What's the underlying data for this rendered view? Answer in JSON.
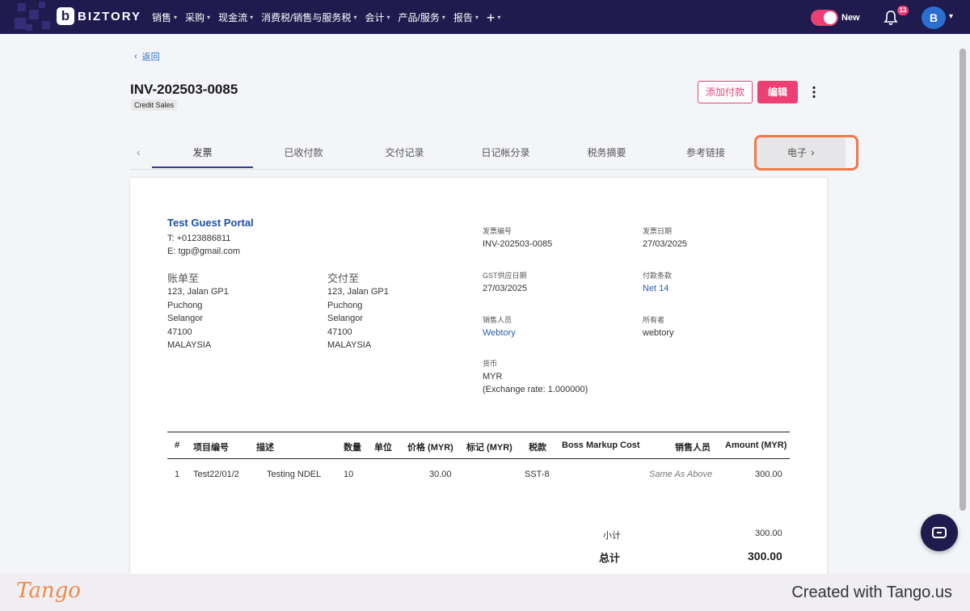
{
  "nav": {
    "brand": "BIZTORY",
    "menu": [
      "销售",
      "采购",
      "现金流",
      "消费税/销售与服务税",
      "会计",
      "产品/服务",
      "报告"
    ],
    "plus": "+",
    "toggle_label": "New",
    "notifications": "13",
    "avatar": "B"
  },
  "header": {
    "back": "返回",
    "invoice_no": "INV-202503-0085",
    "tag": "Credit Sales",
    "add_payment": "添加付款",
    "edit": "编辑"
  },
  "tabs": [
    "发票",
    "已收付款",
    "交付记录",
    "日记帐分录",
    "税务摘要",
    "参考链接",
    "电子"
  ],
  "invoice": {
    "company": "Test Guest Portal",
    "phone": "T: +0123886811",
    "email": "E: tgp@gmail.com",
    "bill_to": {
      "label": "账单至",
      "lines": [
        "123, Jalan GP1",
        "Puchong",
        "Selangor",
        "47100",
        "MALAYSIA"
      ]
    },
    "ship_to": {
      "label": "交付至",
      "lines": [
        "123, Jalan GP1",
        "Puchong",
        "Selangor",
        "47100",
        "MALAYSIA"
      ]
    },
    "meta": {
      "invoice_no_label": "发票编号",
      "invoice_no": "INV-202503-0085",
      "invoice_date_label": "发票日期",
      "invoice_date": "27/03/2025",
      "gst_date_label": "GST供应日期",
      "gst_date": "27/03/2025",
      "terms_label": "付款条款",
      "terms": "Net 14",
      "sales_person_label": "销售人员",
      "sales_person": "Webtory",
      "owner_label": "所有者",
      "owner": "webtory",
      "currency_label": "货币",
      "currency": "MYR",
      "exchange_rate": "(Exchange rate: 1.000000)"
    },
    "columns": [
      "#",
      "项目编号",
      "描述",
      "数量",
      "单位",
      "价格 (MYR)",
      "标记 (MYR)",
      "税款",
      "Boss Markup Cost",
      "销售人员",
      "Amount (MYR)"
    ],
    "row": {
      "idx": "1",
      "item": "Test22/01/2",
      "desc": "Testing NDEL",
      "qty": "10",
      "unit": "",
      "price": "30.00",
      "markup": "",
      "tax": "SST-8",
      "boss": "",
      "sales": "Same As Above",
      "amount": "300.00"
    },
    "subtotal_label": "小计",
    "subtotal": "300.00",
    "total_label": "总计",
    "total": "300.00"
  },
  "footer": {
    "logo": "Tango",
    "credit": "Created with Tango.us"
  }
}
